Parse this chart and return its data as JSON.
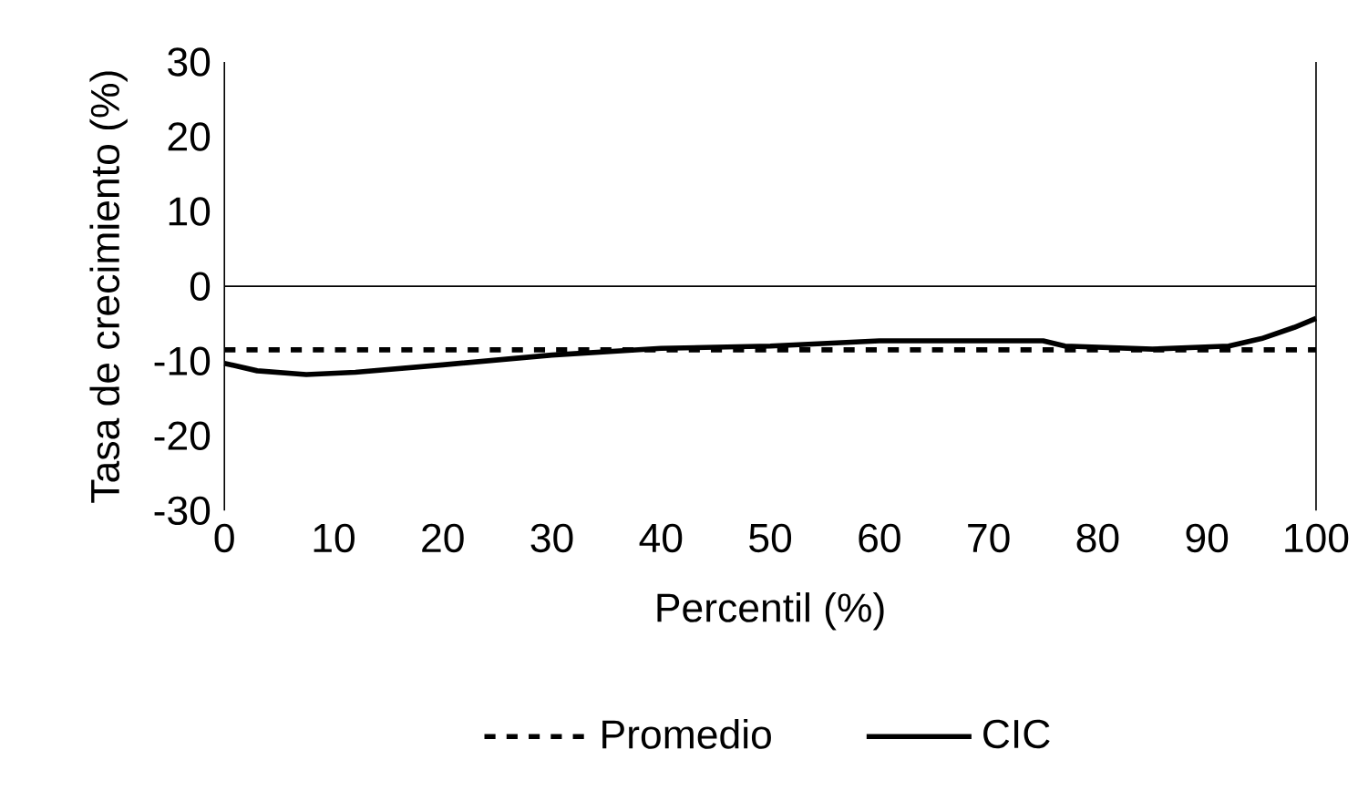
{
  "chart_data": {
    "type": "line",
    "xlabel": "Percentil (%)",
    "ylabel": "Tasa de crecimiento (%)",
    "xlim": [
      0,
      100
    ],
    "xticks": [
      0,
      10,
      20,
      30,
      40,
      50,
      60,
      70,
      80,
      90,
      100
    ],
    "ylim": [
      -30,
      30
    ],
    "yticks": [
      -30,
      -20,
      -10,
      0,
      10,
      20,
      30
    ],
    "legend": "bottom",
    "grid": false,
    "series": [
      {
        "name": "Promedio",
        "color": "#000000",
        "line_style": "dashed",
        "x": [
          0,
          100
        ],
        "values": [
          -8.5,
          -8.5
        ]
      },
      {
        "name": "CIC",
        "color": "#000000",
        "line_style": "solid",
        "x": [
          0,
          3,
          7.5,
          12,
          20,
          30,
          40,
          50,
          60,
          75,
          77,
          85,
          92,
          95,
          98,
          100
        ],
        "values": [
          -10.3,
          -11.3,
          -11.8,
          -11.5,
          -10.5,
          -9.2,
          -8.3,
          -8.0,
          -7.3,
          -7.3,
          -8.0,
          -8.4,
          -8.0,
          -7.0,
          -5.5,
          -4.3
        ]
      }
    ]
  }
}
